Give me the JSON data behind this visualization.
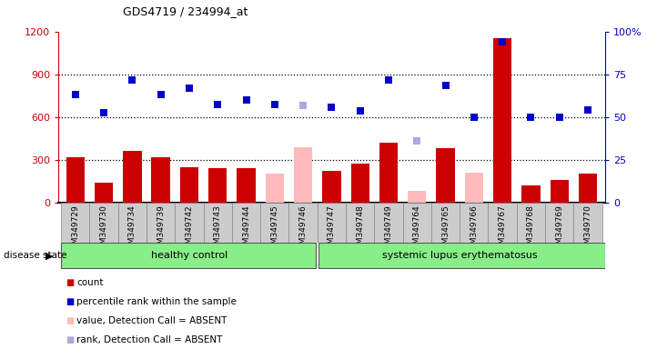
{
  "title": "GDS4719 / 234994_at",
  "samples": [
    "GSM349729",
    "GSM349730",
    "GSM349734",
    "GSM349739",
    "GSM349742",
    "GSM349743",
    "GSM349744",
    "GSM349745",
    "GSM349746",
    "GSM349747",
    "GSM349748",
    "GSM349749",
    "GSM349764",
    "GSM349765",
    "GSM349766",
    "GSM349767",
    "GSM349768",
    "GSM349769",
    "GSM349770"
  ],
  "bar_values": [
    320,
    140,
    360,
    320,
    250,
    240,
    240,
    200,
    390,
    220,
    270,
    420,
    80,
    380,
    210,
    1150,
    120,
    160,
    200
  ],
  "bar_absent": [
    false,
    false,
    false,
    false,
    false,
    false,
    false,
    true,
    true,
    false,
    false,
    false,
    true,
    false,
    true,
    false,
    false,
    false,
    false
  ],
  "rank_values": [
    760,
    630,
    860,
    760,
    800,
    690,
    720,
    690,
    680,
    670,
    640,
    860,
    430,
    820,
    600,
    1130,
    600,
    600,
    650
  ],
  "rank_absent": [
    false,
    false,
    false,
    false,
    false,
    false,
    false,
    false,
    true,
    false,
    false,
    false,
    true,
    false,
    false,
    false,
    false,
    false,
    false
  ],
  "healthy_count": 9,
  "group1_label": "healthy control",
  "group2_label": "systemic lupus erythematosus",
  "ylim_left": [
    0,
    1200
  ],
  "ylim_right": [
    0,
    100
  ],
  "yticks_left": [
    0,
    300,
    600,
    900,
    1200
  ],
  "yticks_right_vals": [
    0,
    25,
    50,
    75,
    100
  ],
  "yticks_right_labels": [
    "0",
    "25",
    "50",
    "75",
    "100%"
  ],
  "bar_color_present": "#cc0000",
  "bar_color_absent": "#ffbbbb",
  "rank_color_present": "#0000cc",
  "rank_color_absent": "#aaaadd",
  "legend_items": [
    "count",
    "percentile rank within the sample",
    "value, Detection Call = ABSENT",
    "rank, Detection Call = ABSENT"
  ],
  "legend_colors": [
    "#cc0000",
    "#0000cc",
    "#ffbbbb",
    "#aaaadd"
  ],
  "disease_state_label": "disease state",
  "bg_color": "#ffffff",
  "group_bg": "#88ee88",
  "xticklabel_bg": "#cccccc",
  "right_axis_color": "#0000cc",
  "left_axis_color": "#cc0000"
}
